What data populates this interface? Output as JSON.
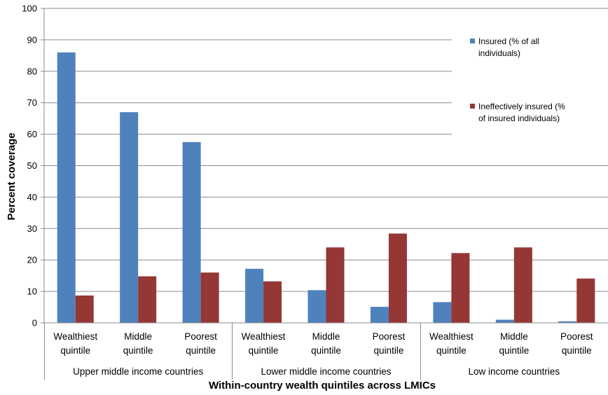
{
  "chart_data": {
    "type": "bar",
    "title": "",
    "xlabel": "Within-country wealth quintiles across LMICs",
    "ylabel": "Percent coverage",
    "ylim": [
      0,
      100
    ],
    "yticks": [
      0,
      10,
      20,
      30,
      40,
      50,
      60,
      70,
      80,
      90,
      100
    ],
    "grid": true,
    "legend_position": "top-right",
    "groups": [
      {
        "label": "Upper middle income countries",
        "categories": [
          {
            "line1": "Wealthiest",
            "line2": "quintile"
          },
          {
            "line1": "Middle",
            "line2": "quintile"
          },
          {
            "line1": "Poorest",
            "line2": "quintile"
          }
        ]
      },
      {
        "label": "Lower middle income countries",
        "categories": [
          {
            "line1": "Wealthiest",
            "line2": "quintile"
          },
          {
            "line1": "Middle",
            "line2": "quintile"
          },
          {
            "line1": "Poorest",
            "line2": "quintile"
          }
        ]
      },
      {
        "label": "Low income countries",
        "categories": [
          {
            "line1": "Wealthiest",
            "line2": "quintile"
          },
          {
            "line1": "Middle",
            "line2": "quintile"
          },
          {
            "line1": "Poorest",
            "line2": "quintile"
          }
        ]
      }
    ],
    "series": [
      {
        "name": "Insured (% of all individuals)",
        "legend_lines": [
          "Insured (% of all",
          "individuals)"
        ],
        "color": "#4F81BD",
        "values": [
          86,
          67,
          57.5,
          17.2,
          10.4,
          5.1,
          6.6,
          1.0,
          0.5
        ]
      },
      {
        "name": "Ineffectively insured (% of insured individuals)",
        "legend_lines": [
          "Ineffectively insured (%",
          "of insured individuals)"
        ],
        "color": "#953735",
        "values": [
          8.7,
          14.8,
          16.0,
          13.2,
          24.0,
          28.4,
          22.2,
          24.0,
          14.1
        ]
      }
    ]
  }
}
